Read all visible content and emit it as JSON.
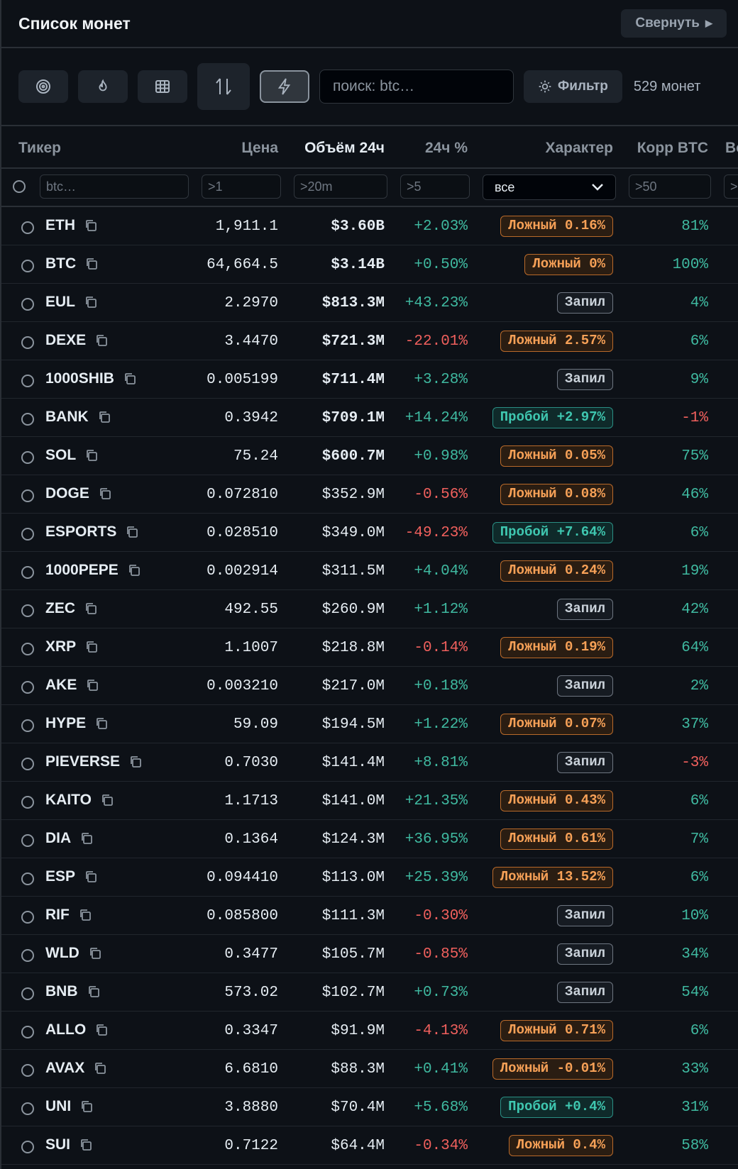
{
  "header": {
    "title": "Список монет",
    "collapse_label": "Свернуть"
  },
  "toolbar": {
    "icons": [
      "target-icon",
      "flame-icon",
      "grid-icon",
      "sort-arrows-icon",
      "lightning-icon"
    ],
    "search_placeholder": "поиск: btc…",
    "filter_label": "Фильтр",
    "count": "529 монет"
  },
  "columns": {
    "ticker": "Тикер",
    "price": "Цена",
    "volume": "Объём 24ч",
    "change": "24ч %",
    "character": "Характер",
    "corr": "Корр BTC",
    "extra": "Во"
  },
  "filters": {
    "ticker": "btc…",
    "price": ">1",
    "volume": ">20m",
    "change": ">5",
    "character": "все",
    "corr": ">50",
    "extra": ">"
  },
  "colors": {
    "positive": "#3fb9a0",
    "negative": "#f0605d",
    "fake": "#f7a157",
    "break": "#3fc7b0"
  },
  "rows": [
    {
      "ticker": "ETH",
      "price": "1,911.1",
      "volume": "$3.60B",
      "vol_bold": true,
      "change": "+2.03%",
      "badge_type": "fake",
      "badge": "Ложный 0.16%",
      "corr": "81%"
    },
    {
      "ticker": "BTC",
      "price": "64,664.5",
      "volume": "$3.14B",
      "vol_bold": true,
      "change": "+0.50%",
      "badge_type": "fake",
      "badge": "Ложный 0%",
      "corr": "100%"
    },
    {
      "ticker": "EUL",
      "price": "2.2970",
      "volume": "$813.3M",
      "vol_bold": true,
      "change": "+43.23%",
      "badge_type": "fill",
      "badge": "Запил",
      "corr": "4%"
    },
    {
      "ticker": "DEXE",
      "price": "3.4470",
      "volume": "$721.3M",
      "vol_bold": true,
      "change": "-22.01%",
      "badge_type": "fake",
      "badge": "Ложный 2.57%",
      "corr": "6%"
    },
    {
      "ticker": "1000SHIB",
      "price": "0.005199",
      "volume": "$711.4M",
      "vol_bold": true,
      "change": "+3.28%",
      "badge_type": "fill",
      "badge": "Запил",
      "corr": "9%"
    },
    {
      "ticker": "BANK",
      "price": "0.3942",
      "volume": "$709.1M",
      "vol_bold": true,
      "change": "+14.24%",
      "badge_type": "break",
      "badge": "Пробой +2.97%",
      "corr": "-1%"
    },
    {
      "ticker": "SOL",
      "price": "75.24",
      "volume": "$600.7M",
      "vol_bold": true,
      "change": "+0.98%",
      "badge_type": "fake",
      "badge": "Ложный 0.05%",
      "corr": "75%"
    },
    {
      "ticker": "DOGE",
      "price": "0.072810",
      "volume": "$352.9M",
      "vol_bold": false,
      "change": "-0.56%",
      "badge_type": "fake",
      "badge": "Ложный 0.08%",
      "corr": "46%"
    },
    {
      "ticker": "ESPORTS",
      "price": "0.028510",
      "volume": "$349.0M",
      "vol_bold": false,
      "change": "-49.23%",
      "badge_type": "break",
      "badge": "Пробой +7.64%",
      "corr": "6%"
    },
    {
      "ticker": "1000PEPE",
      "price": "0.002914",
      "volume": "$311.5M",
      "vol_bold": false,
      "change": "+4.04%",
      "badge_type": "fake",
      "badge": "Ложный 0.24%",
      "corr": "19%"
    },
    {
      "ticker": "ZEC",
      "price": "492.55",
      "volume": "$260.9M",
      "vol_bold": false,
      "change": "+1.12%",
      "badge_type": "fill",
      "badge": "Запил",
      "corr": "42%"
    },
    {
      "ticker": "XRP",
      "price": "1.1007",
      "volume": "$218.8M",
      "vol_bold": false,
      "change": "-0.14%",
      "badge_type": "fake",
      "badge": "Ложный 0.19%",
      "corr": "64%"
    },
    {
      "ticker": "AKE",
      "price": "0.003210",
      "volume": "$217.0M",
      "vol_bold": false,
      "change": "+0.18%",
      "badge_type": "fill",
      "badge": "Запил",
      "corr": "2%"
    },
    {
      "ticker": "HYPE",
      "price": "59.09",
      "volume": "$194.5M",
      "vol_bold": false,
      "change": "+1.22%",
      "badge_type": "fake",
      "badge": "Ложный 0.07%",
      "corr": "37%"
    },
    {
      "ticker": "PIEVERSE",
      "price": "0.7030",
      "volume": "$141.4M",
      "vol_bold": false,
      "change": "+8.81%",
      "badge_type": "fill",
      "badge": "Запил",
      "corr": "-3%"
    },
    {
      "ticker": "KAITO",
      "price": "1.1713",
      "volume": "$141.0M",
      "vol_bold": false,
      "change": "+21.35%",
      "badge_type": "fake",
      "badge": "Ложный 0.43%",
      "corr": "6%"
    },
    {
      "ticker": "DIA",
      "price": "0.1364",
      "volume": "$124.3M",
      "vol_bold": false,
      "change": "+36.95%",
      "badge_type": "fake",
      "badge": "Ложный 0.61%",
      "corr": "7%"
    },
    {
      "ticker": "ESP",
      "price": "0.094410",
      "volume": "$113.0M",
      "vol_bold": false,
      "change": "+25.39%",
      "badge_type": "fake",
      "badge": "Ложный 13.52%",
      "corr": "6%"
    },
    {
      "ticker": "RIF",
      "price": "0.085800",
      "volume": "$111.3M",
      "vol_bold": false,
      "change": "-0.30%",
      "badge_type": "fill",
      "badge": "Запил",
      "corr": "10%"
    },
    {
      "ticker": "WLD",
      "price": "0.3477",
      "volume": "$105.7M",
      "vol_bold": false,
      "change": "-0.85%",
      "badge_type": "fill",
      "badge": "Запил",
      "corr": "34%"
    },
    {
      "ticker": "BNB",
      "price": "573.02",
      "volume": "$102.7M",
      "vol_bold": false,
      "change": "+0.73%",
      "badge_type": "fill",
      "badge": "Запил",
      "corr": "54%"
    },
    {
      "ticker": "ALLO",
      "price": "0.3347",
      "volume": "$91.9M",
      "vol_bold": false,
      "change": "-4.13%",
      "badge_type": "fake",
      "badge": "Ложный 0.71%",
      "corr": "6%"
    },
    {
      "ticker": "AVAX",
      "price": "6.6810",
      "volume": "$88.3M",
      "vol_bold": false,
      "change": "+0.41%",
      "badge_type": "fake",
      "badge": "Ложный -0.01%",
      "corr": "33%"
    },
    {
      "ticker": "UNI",
      "price": "3.8880",
      "volume": "$70.4M",
      "vol_bold": false,
      "change": "+5.68%",
      "badge_type": "break",
      "badge": "Пробой +0.4%",
      "corr": "31%"
    },
    {
      "ticker": "SUI",
      "price": "0.7122",
      "volume": "$64.4M",
      "vol_bold": false,
      "change": "-0.34%",
      "badge_type": "fake",
      "badge": "Ложный 0.4%",
      "corr": "58%"
    }
  ]
}
